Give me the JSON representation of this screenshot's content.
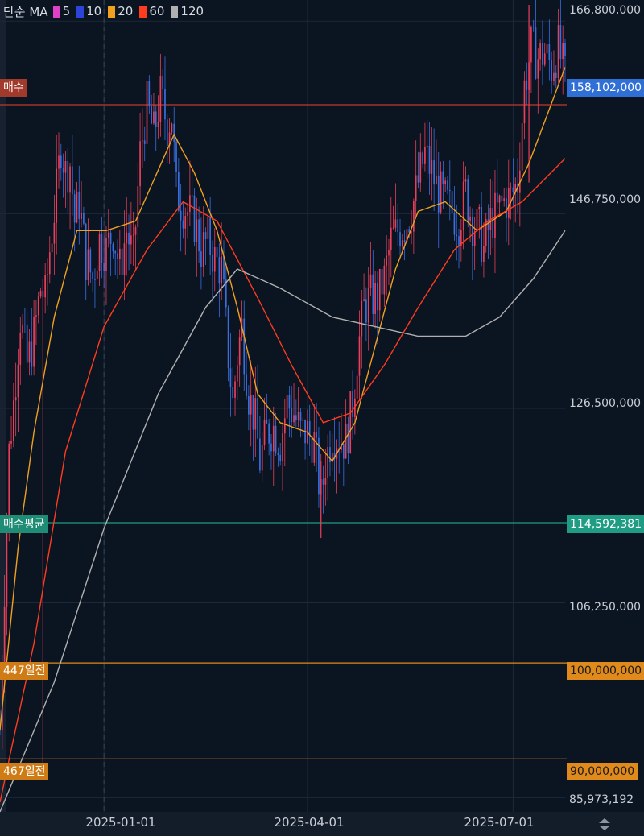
{
  "legend": {
    "prefix": "단순 MA",
    "items": [
      {
        "label": "5",
        "color": "#e040c8"
      },
      {
        "label": "10",
        "color": "#2c44d8"
      },
      {
        "label": "20",
        "color": "#f0a020"
      },
      {
        "label": "60",
        "color": "#ff3c1e"
      },
      {
        "label": "120",
        "color": "#b0b0b0"
      }
    ]
  },
  "chart_data": {
    "type": "candlestick",
    "y_axis": {
      "ticks": [
        "166,800,000",
        "146,750,000",
        "126,500,000",
        "106,250,000",
        "85,973,192"
      ],
      "tick_values": [
        166800000,
        146750000,
        126500000,
        106250000,
        85973192
      ],
      "range": [
        84500000,
        169000000
      ]
    },
    "x_axis": {
      "ticks": [
        "2025-01-01",
        "2025-04-01",
        "2025-07-01"
      ],
      "range": [
        "2024-11-16",
        "2025-07-24"
      ]
    },
    "reference_lines": [
      {
        "label": "매수",
        "value": 158102000,
        "value_label": "158,102,000",
        "color": "#c0392b",
        "value_bg": "#2f6fd6"
      },
      {
        "label": "매수평균",
        "value": 114592381,
        "value_label": "114,592,381",
        "color": "#1f9c84",
        "value_bg": "#1f9c84"
      },
      {
        "label": "447일전",
        "value": 100000000,
        "value_label": "100,000,000",
        "color": "#e08a1c",
        "value_bg": "#e08a1c"
      },
      {
        "label": "467일전",
        "value": 90000000,
        "value_label": "90,000,000",
        "color": "#e08a1c",
        "value_bg": "#e08a1c"
      }
    ],
    "price_path": [
      [
        "2024-11-16",
        93000000
      ],
      [
        "2024-11-18",
        108000000
      ],
      [
        "2024-11-20",
        122000000
      ],
      [
        "2024-11-22",
        127000000
      ],
      [
        "2024-11-25",
        136000000
      ],
      [
        "2024-11-28",
        131000000
      ],
      [
        "2024-12-01",
        134000000
      ],
      [
        "2024-12-04",
        139000000
      ],
      [
        "2024-12-06",
        138000000
      ],
      [
        "2024-12-08",
        143000000
      ],
      [
        "2024-12-11",
        149000000
      ],
      [
        "2024-12-13",
        154000000
      ],
      [
        "2024-12-15",
        151000000
      ],
      [
        "2024-12-17",
        152000000
      ],
      [
        "2024-12-19",
        146000000
      ],
      [
        "2024-12-21",
        148000000
      ],
      [
        "2024-12-24",
        142000000
      ],
      [
        "2024-12-27",
        140000000
      ],
      [
        "2024-12-30",
        144000000
      ],
      [
        "2025-01-02",
        143000000
      ],
      [
        "2025-01-05",
        145000000
      ],
      [
        "2025-01-08",
        141000000
      ],
      [
        "2025-01-11",
        145000000
      ],
      [
        "2025-01-14",
        142000000
      ],
      [
        "2025-01-17",
        153000000
      ],
      [
        "2025-01-20",
        158000000
      ],
      [
        "2025-01-23",
        155000000
      ],
      [
        "2025-01-26",
        159000000
      ],
      [
        "2025-01-29",
        156000000
      ],
      [
        "2025-01-31",
        157000000
      ],
      [
        "2025-02-02",
        149000000
      ],
      [
        "2025-02-04",
        148000000
      ],
      [
        "2025-02-07",
        147000000
      ],
      [
        "2025-02-10",
        146000000
      ],
      [
        "2025-02-13",
        143000000
      ],
      [
        "2025-02-16",
        144000000
      ],
      [
        "2025-02-19",
        142000000
      ],
      [
        "2025-02-22",
        141000000
      ],
      [
        "2025-02-25",
        132000000
      ],
      [
        "2025-02-27",
        127000000
      ],
      [
        "2025-03-01",
        132000000
      ],
      [
        "2025-03-03",
        135000000
      ],
      [
        "2025-03-06",
        128000000
      ],
      [
        "2025-03-09",
        125000000
      ],
      [
        "2025-03-11",
        121000000
      ],
      [
        "2025-03-14",
        124000000
      ],
      [
        "2025-03-17",
        124500000
      ],
      [
        "2025-03-20",
        123000000
      ],
      [
        "2025-03-23",
        127000000
      ],
      [
        "2025-03-26",
        126000000
      ],
      [
        "2025-03-29",
        124000000
      ],
      [
        "2025-04-01",
        124000000
      ],
      [
        "2025-04-04",
        123000000
      ],
      [
        "2025-04-07",
        117000000
      ],
      [
        "2025-04-09",
        121000000
      ],
      [
        "2025-04-12",
        124000000
      ],
      [
        "2025-04-15",
        123500000
      ],
      [
        "2025-04-18",
        123000000
      ],
      [
        "2025-04-21",
        127000000
      ],
      [
        "2025-04-23",
        132000000
      ],
      [
        "2025-04-26",
        137000000
      ],
      [
        "2025-04-29",
        138000000
      ],
      [
        "2025-05-02",
        138000000
      ],
      [
        "2025-05-05",
        140000000
      ],
      [
        "2025-05-08",
        144000000
      ],
      [
        "2025-05-11",
        145000000
      ],
      [
        "2025-05-14",
        145500000
      ],
      [
        "2025-05-17",
        147000000
      ],
      [
        "2025-05-20",
        150000000
      ],
      [
        "2025-05-23",
        153000000
      ],
      [
        "2025-05-26",
        151000000
      ],
      [
        "2025-05-29",
        149000000
      ],
      [
        "2025-06-01",
        148000000
      ],
      [
        "2025-06-04",
        147000000
      ],
      [
        "2025-06-07",
        146000000
      ],
      [
        "2025-06-10",
        149000000
      ],
      [
        "2025-06-13",
        146000000
      ],
      [
        "2025-06-16",
        145000000
      ],
      [
        "2025-06-18",
        143000000
      ],
      [
        "2025-06-21",
        146000000
      ],
      [
        "2025-06-24",
        147000000
      ],
      [
        "2025-06-27",
        148000000
      ],
      [
        "2025-06-30",
        148500000
      ],
      [
        "2025-07-03",
        150000000
      ],
      [
        "2025-07-06",
        160000000
      ],
      [
        "2025-07-09",
        164000000
      ],
      [
        "2025-07-12",
        163000000
      ],
      [
        "2025-07-15",
        163500000
      ],
      [
        "2025-07-18",
        162000000
      ],
      [
        "2025-07-21",
        164000000
      ],
      [
        "2025-07-24",
        161000000
      ]
    ],
    "moving_averages": [
      {
        "period": "20",
        "color": "#f0a020",
        "points": [
          [
            "2024-11-16",
            93000000
          ],
          [
            "2024-11-24",
            112000000
          ],
          [
            "2024-12-01",
            124000000
          ],
          [
            "2024-12-10",
            136000000
          ],
          [
            "2024-12-20",
            145000000
          ],
          [
            "2025-01-02",
            145000000
          ],
          [
            "2025-01-15",
            146000000
          ],
          [
            "2025-02-01",
            155000000
          ],
          [
            "2025-02-10",
            151000000
          ],
          [
            "2025-02-20",
            145000000
          ],
          [
            "2025-03-01",
            137000000
          ],
          [
            "2025-03-10",
            128000000
          ],
          [
            "2025-03-20",
            125000000
          ],
          [
            "2025-04-01",
            124000000
          ],
          [
            "2025-04-12",
            121000000
          ],
          [
            "2025-04-22",
            125000000
          ],
          [
            "2025-05-01",
            133000000
          ],
          [
            "2025-05-10",
            141000000
          ],
          [
            "2025-05-20",
            147000000
          ],
          [
            "2025-06-01",
            148000000
          ],
          [
            "2025-06-15",
            145000000
          ],
          [
            "2025-06-28",
            147000000
          ],
          [
            "2025-07-08",
            152000000
          ],
          [
            "2025-07-24",
            162000000
          ]
        ]
      },
      {
        "period": "60",
        "color": "#ff3c1e",
        "points": [
          [
            "2024-11-16",
            85500000
          ],
          [
            "2024-12-01",
            102000000
          ],
          [
            "2024-12-15",
            122000000
          ],
          [
            "2025-01-01",
            135000000
          ],
          [
            "2025-01-20",
            143000000
          ],
          [
            "2025-02-05",
            148000000
          ],
          [
            "2025-02-20",
            146000000
          ],
          [
            "2025-03-10",
            138000000
          ],
          [
            "2025-03-25",
            131000000
          ],
          [
            "2025-04-08",
            125000000
          ],
          [
            "2025-04-20",
            126000000
          ],
          [
            "2025-05-05",
            131000000
          ],
          [
            "2025-05-20",
            137000000
          ],
          [
            "2025-06-05",
            143000000
          ],
          [
            "2025-06-20",
            146000000
          ],
          [
            "2025-07-05",
            148000000
          ],
          [
            "2025-07-24",
            152500000
          ]
        ]
      },
      {
        "period": "120",
        "color": "#b0b0b0",
        "points": [
          [
            "2024-11-16",
            84500000
          ],
          [
            "2024-12-10",
            98000000
          ],
          [
            "2025-01-01",
            114000000
          ],
          [
            "2025-01-25",
            128000000
          ],
          [
            "2025-02-15",
            137000000
          ],
          [
            "2025-03-01",
            141000000
          ],
          [
            "2025-03-20",
            139000000
          ],
          [
            "2025-04-12",
            136000000
          ],
          [
            "2025-05-01",
            135000000
          ],
          [
            "2025-05-20",
            134000000
          ],
          [
            "2025-06-10",
            134000000
          ],
          [
            "2025-06-25",
            136000000
          ],
          [
            "2025-07-10",
            140000000
          ],
          [
            "2025-07-24",
            145000000
          ]
        ]
      }
    ]
  }
}
